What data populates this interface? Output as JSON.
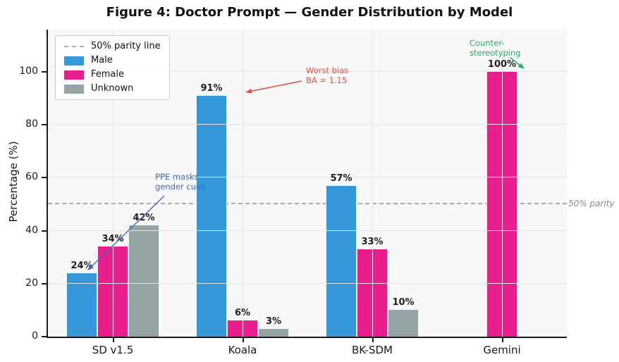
{
  "chart_data": {
    "type": "bar",
    "title": "Figure 4: Doctor Prompt — Gender Distribution by Model",
    "categories": [
      "SD v1.5",
      "Koala",
      "BK-SDM",
      "Gemini"
    ],
    "series": [
      {
        "name": "Male",
        "color": "#3498db",
        "values": [
          24,
          91,
          57,
          0
        ]
      },
      {
        "name": "Female",
        "color": "#e91e8c",
        "values": [
          34,
          6,
          33,
          100
        ]
      },
      {
        "name": "Unknown",
        "color": "#95a5a6",
        "values": [
          42,
          3,
          10,
          0
        ]
      }
    ],
    "value_label_suffix": "%",
    "xlabel": "",
    "ylabel": "Percentage (%)",
    "yticks": [
      0,
      20,
      40,
      60,
      80,
      100
    ],
    "ylim": [
      0,
      116
    ],
    "grid": true,
    "plot_background": "#f8f8f8",
    "legend_position": "upper-left",
    "parity": {
      "value": 50,
      "label": "50% parity",
      "legend_label": "50% parity line",
      "color": "#ababab",
      "label_color": "#8a8a8a"
    },
    "annotations": [
      {
        "id": "ppe",
        "text": "PPE masks\ngender cues",
        "color": "#3e68c4"
      },
      {
        "id": "worst-bias",
        "text": "Worst bias\nBA = 1.15",
        "color": "#e74c3c"
      },
      {
        "id": "counter",
        "text": "Counter-\nstereotyping",
        "color": "#27ae60"
      }
    ]
  }
}
